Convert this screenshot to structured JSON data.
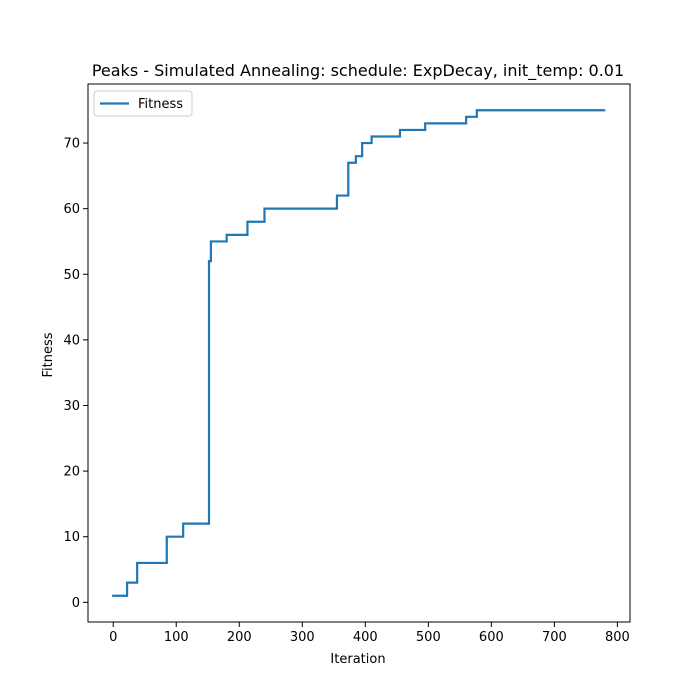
{
  "chart_data": {
    "type": "line",
    "title": "Peaks - Simulated Annealing: schedule: ExpDecay, init_temp: 0.01",
    "xlabel": "Iteration",
    "ylabel": "Fitness",
    "xlim": [
      -40,
      820
    ],
    "ylim": [
      -3,
      79
    ],
    "xticks": [
      0,
      100,
      200,
      300,
      400,
      500,
      600,
      700,
      800
    ],
    "yticks": [
      0,
      10,
      20,
      30,
      40,
      50,
      60,
      70
    ],
    "grid": false,
    "legend": {
      "position": "top-left",
      "entries": [
        "Fitness"
      ]
    },
    "step": true,
    "color": "#1f77b4",
    "series": [
      {
        "name": "Fitness",
        "x": [
          0,
          22,
          38,
          85,
          111,
          152,
          155,
          180,
          213,
          240,
          355,
          373,
          385,
          395,
          410,
          455,
          495,
          560,
          577,
          779
        ],
        "y": [
          1,
          3,
          6,
          10,
          12,
          52,
          55,
          56,
          58,
          60,
          62,
          67,
          68,
          70,
          71,
          72,
          73,
          74,
          75,
          75
        ]
      }
    ]
  }
}
